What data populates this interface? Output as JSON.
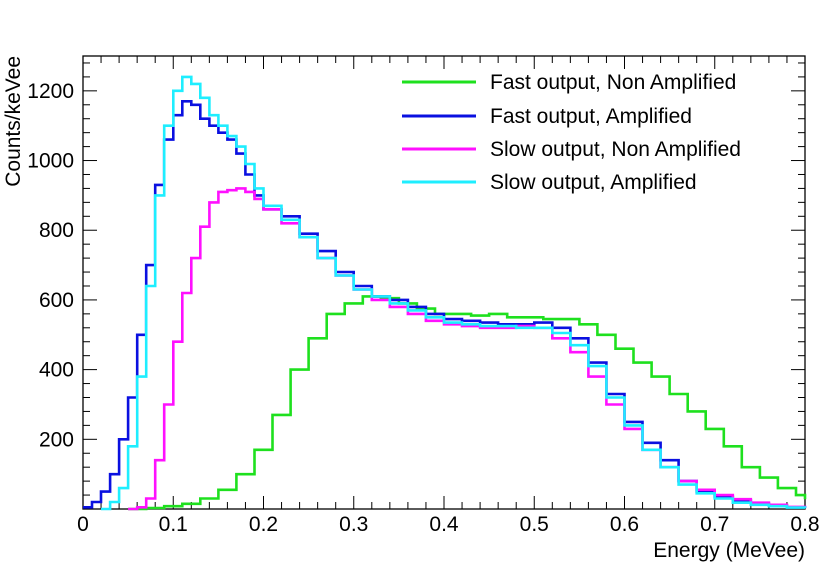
{
  "chart_data": {
    "type": "line",
    "title": "",
    "xlabel": "Energy (MeVee)",
    "ylabel": "Counts/keVee",
    "xlim": [
      0,
      0.8
    ],
    "ylim": [
      0,
      1300
    ],
    "x_ticks": [
      0,
      0.1,
      0.2,
      0.3,
      0.4,
      0.5,
      0.6,
      0.7,
      0.8
    ],
    "x_tick_labels": [
      "0",
      "0.1",
      "0.2",
      "0.3",
      "0.4",
      "0.5",
      "0.6",
      "0.7",
      "0.8"
    ],
    "y_ticks": [
      200,
      400,
      600,
      800,
      1000,
      1200
    ],
    "y_tick_labels": [
      "200",
      "400",
      "600",
      "800",
      "1000",
      "1200"
    ],
    "grid": false,
    "legend_position": "top-right",
    "series": [
      {
        "name": "Fast output, Non Amplified",
        "color": "#1ee01e",
        "x": [
          0.05,
          0.07,
          0.09,
          0.11,
          0.13,
          0.15,
          0.17,
          0.19,
          0.21,
          0.23,
          0.25,
          0.27,
          0.29,
          0.31,
          0.33,
          0.35,
          0.37,
          0.39,
          0.41,
          0.43,
          0.45,
          0.47,
          0.49,
          0.51,
          0.53,
          0.55,
          0.57,
          0.59,
          0.61,
          0.63,
          0.65,
          0.67,
          0.69,
          0.71,
          0.73,
          0.75,
          0.77,
          0.79,
          0.8
        ],
        "y": [
          0,
          3,
          8,
          15,
          30,
          55,
          100,
          170,
          270,
          400,
          490,
          560,
          590,
          610,
          605,
          590,
          575,
          560,
          560,
          555,
          560,
          550,
          550,
          545,
          545,
          530,
          500,
          460,
          420,
          380,
          330,
          280,
          230,
          180,
          120,
          90,
          60,
          40,
          28
        ]
      },
      {
        "name": "Fast output, Amplified",
        "color": "#0a10e0",
        "x": [
          0,
          0.01,
          0.02,
          0.03,
          0.04,
          0.05,
          0.06,
          0.07,
          0.08,
          0.09,
          0.1,
          0.11,
          0.12,
          0.13,
          0.14,
          0.15,
          0.16,
          0.17,
          0.18,
          0.19,
          0.2,
          0.22,
          0.24,
          0.26,
          0.28,
          0.3,
          0.32,
          0.34,
          0.36,
          0.38,
          0.4,
          0.42,
          0.44,
          0.46,
          0.48,
          0.5,
          0.52,
          0.54,
          0.56,
          0.58,
          0.6,
          0.62,
          0.64,
          0.66,
          0.68,
          0.7,
          0.72,
          0.74,
          0.76,
          0.78,
          0.8
        ],
        "y": [
          5,
          20,
          50,
          100,
          200,
          320,
          500,
          700,
          930,
          1060,
          1130,
          1170,
          1160,
          1120,
          1100,
          1080,
          1060,
          1020,
          960,
          900,
          860,
          840,
          790,
          740,
          680,
          640,
          610,
          600,
          580,
          560,
          545,
          540,
          535,
          530,
          530,
          535,
          520,
          490,
          420,
          330,
          250,
          190,
          140,
          80,
          50,
          35,
          25,
          15,
          10,
          5,
          3
        ]
      },
      {
        "name": "Slow output, Non Amplified",
        "color": "#ff10ff",
        "x": [
          0.05,
          0.06,
          0.07,
          0.08,
          0.09,
          0.1,
          0.11,
          0.12,
          0.13,
          0.14,
          0.15,
          0.16,
          0.17,
          0.18,
          0.19,
          0.2,
          0.22,
          0.24,
          0.26,
          0.28,
          0.3,
          0.32,
          0.34,
          0.36,
          0.38,
          0.4,
          0.42,
          0.44,
          0.46,
          0.48,
          0.5,
          0.52,
          0.54,
          0.56,
          0.58,
          0.6,
          0.62,
          0.64,
          0.66,
          0.68,
          0.7,
          0.72,
          0.74,
          0.76,
          0.78,
          0.8
        ],
        "y": [
          0,
          5,
          30,
          140,
          300,
          480,
          620,
          720,
          810,
          880,
          910,
          915,
          920,
          910,
          890,
          860,
          820,
          780,
          720,
          670,
          630,
          600,
          580,
          560,
          540,
          530,
          525,
          520,
          520,
          525,
          520,
          490,
          450,
          380,
          300,
          230,
          170,
          120,
          80,
          55,
          40,
          28,
          18,
          12,
          6,
          3
        ]
      },
      {
        "name": "Slow output, Amplified",
        "color": "#1eeeff",
        "x": [
          0.02,
          0.03,
          0.04,
          0.05,
          0.06,
          0.07,
          0.08,
          0.09,
          0.1,
          0.11,
          0.12,
          0.13,
          0.14,
          0.15,
          0.16,
          0.17,
          0.18,
          0.19,
          0.2,
          0.22,
          0.24,
          0.26,
          0.28,
          0.3,
          0.32,
          0.34,
          0.36,
          0.38,
          0.4,
          0.42,
          0.44,
          0.46,
          0.48,
          0.5,
          0.52,
          0.54,
          0.56,
          0.58,
          0.6,
          0.62,
          0.64,
          0.66,
          0.68,
          0.7,
          0.72,
          0.74,
          0.76,
          0.78,
          0.8
        ],
        "y": [
          0,
          20,
          60,
          180,
          380,
          640,
          900,
          1100,
          1200,
          1240,
          1220,
          1180,
          1130,
          1100,
          1070,
          1040,
          990,
          920,
          870,
          830,
          780,
          720,
          670,
          630,
          610,
          590,
          570,
          550,
          535,
          530,
          525,
          525,
          520,
          520,
          505,
          470,
          410,
          320,
          240,
          170,
          120,
          70,
          45,
          30,
          18,
          12,
          8,
          4,
          2
        ]
      }
    ]
  }
}
